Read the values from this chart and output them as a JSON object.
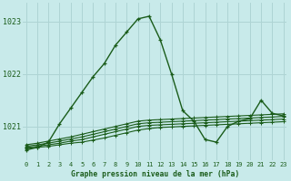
{
  "title": "Graphe pression niveau de la mer (hPa)",
  "background_color": "#c8eaea",
  "grid_color": "#aed4d4",
  "line_color": "#1a5c1a",
  "hours": [
    0,
    1,
    2,
    3,
    4,
    5,
    6,
    7,
    8,
    9,
    10,
    11,
    12,
    13,
    14,
    15,
    16,
    17,
    18,
    19,
    20,
    21,
    22,
    23
  ],
  "flat_series": [
    [
      1020.65,
      1020.68,
      1020.72,
      1020.76,
      1020.8,
      1020.85,
      1020.9,
      1020.95,
      1021.0,
      1021.05,
      1021.1,
      1021.12,
      1021.13,
      1021.14,
      1021.15,
      1021.16,
      1021.17,
      1021.18,
      1021.19,
      1021.2,
      1021.21,
      1021.22,
      1021.23,
      1021.24
    ],
    [
      1020.62,
      1020.65,
      1020.68,
      1020.72,
      1020.76,
      1020.8,
      1020.85,
      1020.9,
      1020.95,
      1021.0,
      1021.05,
      1021.07,
      1021.08,
      1021.09,
      1021.1,
      1021.11,
      1021.12,
      1021.13,
      1021.14,
      1021.15,
      1021.16,
      1021.17,
      1021.18,
      1021.19
    ],
    [
      1020.6,
      1020.62,
      1020.65,
      1020.68,
      1020.72,
      1020.75,
      1020.8,
      1020.85,
      1020.9,
      1020.95,
      1021.0,
      1021.02,
      1021.03,
      1021.04,
      1021.05,
      1021.06,
      1021.07,
      1021.08,
      1021.09,
      1021.1,
      1021.11,
      1021.12,
      1021.13,
      1021.14
    ],
    [
      1020.58,
      1020.6,
      1020.62,
      1020.65,
      1020.68,
      1020.7,
      1020.74,
      1020.78,
      1020.83,
      1020.88,
      1020.93,
      1020.96,
      1020.98,
      1020.99,
      1021.0,
      1021.01,
      1021.02,
      1021.03,
      1021.04,
      1021.05,
      1021.06,
      1021.07,
      1021.08,
      1021.09
    ]
  ],
  "main_series": [
    1020.55,
    1020.6,
    1020.7,
    1021.05,
    1021.35,
    1021.65,
    1021.95,
    1022.2,
    1022.55,
    1022.8,
    1023.05,
    1023.1,
    1022.65,
    1022.0,
    1021.3,
    1021.1,
    1020.75,
    1020.7,
    1021.0,
    1021.1,
    1021.15,
    1021.5,
    1021.25,
    1021.2
  ],
  "ylim": [
    1020.35,
    1023.35
  ],
  "yticks": [
    1021,
    1022,
    1023
  ],
  "xlim": [
    -0.3,
    23.3
  ],
  "xticks": [
    0,
    1,
    2,
    3,
    4,
    5,
    6,
    7,
    8,
    9,
    10,
    11,
    12,
    13,
    14,
    15,
    16,
    17,
    18,
    19,
    20,
    21,
    22,
    23
  ]
}
